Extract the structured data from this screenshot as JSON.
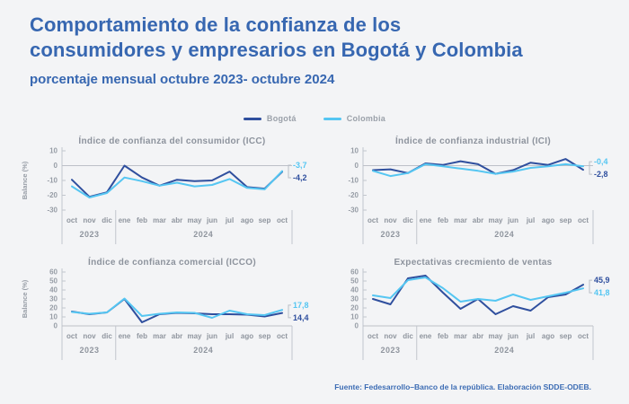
{
  "header": {
    "title_lines": [
      "Comportamiento de la confianza de los",
      "consumidores y empresarios en Bogotá y Colombia"
    ],
    "subtitle": "porcentaje mensual octubre 2023- octubre 2024"
  },
  "legend": [
    {
      "label": "Bogotá",
      "color": "#2F4F9E"
    },
    {
      "label": "Colombia",
      "color": "#55C6F2"
    }
  ],
  "chart_data": [
    {
      "type": "line",
      "title": "Índice de confianza del consumidor (ICC)",
      "ylabel": "Balance (%)",
      "ylim": [
        -30,
        10
      ],
      "yticks": [
        10,
        0,
        -10,
        -20,
        -30
      ],
      "categories": [
        "oct",
        "nov",
        "dic",
        "ene",
        "feb",
        "mar",
        "abr",
        "may",
        "jun",
        "jul",
        "ago",
        "sep",
        "oct"
      ],
      "year_groups": [
        {
          "label": "2023",
          "from": 0,
          "to": 2
        },
        {
          "label": "2024",
          "from": 3,
          "to": 12
        }
      ],
      "series": [
        {
          "name": "Bogotá",
          "color": "#2F4F9E",
          "end_label": "-4,2",
          "values": [
            -9.5,
            -21,
            -18,
            0,
            -8,
            -13.5,
            -9.5,
            -10.5,
            -10,
            -4,
            -14.5,
            -15.5,
            -4.2
          ]
        },
        {
          "name": "Colombia",
          "color": "#55C6F2",
          "end_label": "-3,7",
          "values": [
            -14,
            -21.5,
            -18.5,
            -8,
            -10.5,
            -13.5,
            -11.5,
            -14,
            -13,
            -9,
            -15,
            -16,
            -3.7
          ]
        }
      ]
    },
    {
      "type": "line",
      "title": "Índice de confianza industrial (ICI)",
      "ylabel": "",
      "ylim": [
        -30,
        10
      ],
      "yticks": [
        10,
        0,
        -10,
        -20,
        -30
      ],
      "categories": [
        "oct",
        "nov",
        "dic",
        "ene",
        "feb",
        "mar",
        "abr",
        "may",
        "jun",
        "jul",
        "ago",
        "sep",
        "oct"
      ],
      "year_groups": [
        {
          "label": "2023",
          "from": 0,
          "to": 2
        },
        {
          "label": "2024",
          "from": 3,
          "to": 12
        }
      ],
      "series": [
        {
          "name": "Bogotá",
          "color": "#2F4F9E",
          "end_label": "-2,8",
          "values": [
            -3,
            -2.5,
            -5,
            1.5,
            0.5,
            3,
            1,
            -5.5,
            -3,
            2,
            0.5,
            4.5,
            -2.8
          ]
        },
        {
          "name": "Colombia",
          "color": "#55C6F2",
          "end_label": "-0,4",
          "values": [
            -3.5,
            -7,
            -5,
            1,
            -0.5,
            -2,
            -3.5,
            -5.5,
            -4,
            -1.5,
            -0.5,
            1,
            -0.4
          ]
        }
      ]
    },
    {
      "type": "line",
      "title": "Índice de confianza comercial (ICCO)",
      "ylabel": "Balance (%)",
      "ylim": [
        0,
        60
      ],
      "yticks": [
        60,
        50,
        40,
        30,
        20,
        10,
        0
      ],
      "categories": [
        "oct",
        "nov",
        "dic",
        "ene",
        "feb",
        "mar",
        "abr",
        "may",
        "jun",
        "jul",
        "ago",
        "sep",
        "oct"
      ],
      "year_groups": [
        {
          "label": "2023",
          "from": 0,
          "to": 2
        },
        {
          "label": "2024",
          "from": 3,
          "to": 12
        }
      ],
      "series": [
        {
          "name": "Bogotá",
          "color": "#2F4F9E",
          "end_label": "14,4",
          "values": [
            16,
            13,
            15,
            30,
            4,
            13,
            14.5,
            14,
            13,
            13,
            12.5,
            10.5,
            14.4
          ]
        },
        {
          "name": "Colombia",
          "color": "#55C6F2",
          "end_label": "17,8",
          "values": [
            15.5,
            13.5,
            15,
            30.5,
            11,
            13.5,
            15,
            14.5,
            9,
            17,
            13,
            12,
            17.8
          ]
        }
      ]
    },
    {
      "type": "line",
      "title": "Expectativas crecmiento de ventas",
      "ylabel": "",
      "ylim": [
        0,
        60
      ],
      "yticks": [
        60,
        50,
        40,
        30,
        20,
        10,
        0
      ],
      "categories": [
        "oct",
        "nov",
        "dic",
        "ene",
        "feb",
        "mar",
        "abr",
        "may",
        "jun",
        "jul",
        "ago",
        "sep",
        "oct"
      ],
      "year_groups": [
        {
          "label": "2023",
          "from": 0,
          "to": 2
        },
        {
          "label": "2024",
          "from": 3,
          "to": 12
        }
      ],
      "series": [
        {
          "name": "Bogotá",
          "color": "#2F4F9E",
          "end_label": "45,9",
          "values": [
            30,
            24,
            53,
            56,
            37,
            19,
            30,
            13,
            22,
            17,
            32,
            35,
            45.9
          ]
        },
        {
          "name": "Colombia",
          "color": "#55C6F2",
          "end_label": "41,8",
          "values": [
            34,
            31,
            51,
            54,
            42,
            27,
            30,
            28,
            35,
            29,
            33,
            37,
            41.8
          ]
        }
      ]
    }
  ],
  "footer": {
    "source": "Fuente: Fedesarrollo–Banco de la república. Elaboración SDDE-ODEB."
  }
}
